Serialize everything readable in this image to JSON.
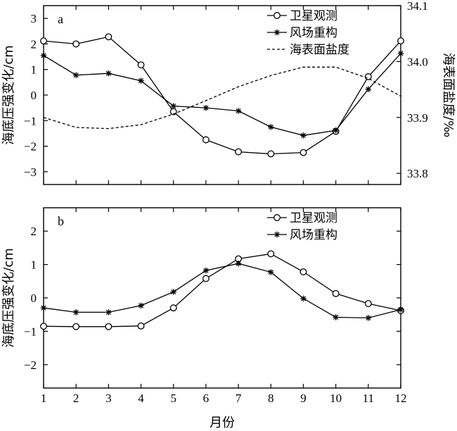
{
  "chart_data": [
    {
      "type": "line",
      "panel_label": "a",
      "x": [
        1,
        2,
        3,
        4,
        5,
        6,
        7,
        8,
        9,
        10,
        11,
        12
      ],
      "ylabel": "海底压强变化/cm",
      "ylim": [
        -3.5,
        3.5
      ],
      "yticks": [
        -3,
        -2,
        -1,
        0,
        1,
        2,
        3
      ],
      "y2label": "海表面盐度/‰",
      "y2lim": [
        33.78,
        34.1
      ],
      "y2ticks": [
        "33.8",
        "33.9",
        "34.0",
        "34.1"
      ],
      "y2tick_values": [
        33.8,
        33.9,
        34.0,
        34.1
      ],
      "legend_position": "top-right",
      "series": [
        {
          "name": "卫星观测",
          "marker": "circle",
          "axis": "left",
          "values": [
            2.12,
            2.0,
            2.28,
            1.18,
            -0.65,
            -1.75,
            -2.22,
            -2.3,
            -2.25,
            -1.42,
            0.72,
            2.12
          ]
        },
        {
          "name": "风场重构",
          "marker": "star",
          "axis": "left",
          "values": [
            1.55,
            0.78,
            0.85,
            0.56,
            -0.43,
            -0.5,
            -0.62,
            -1.25,
            -1.58,
            -1.38,
            0.23,
            1.63
          ]
        },
        {
          "name": "海表面盐度",
          "marker": "none",
          "dash": true,
          "axis": "right",
          "values": [
            33.9,
            33.882,
            33.88,
            33.887,
            33.906,
            33.93,
            33.955,
            33.975,
            33.99,
            33.99,
            33.97,
            33.938
          ]
        }
      ]
    },
    {
      "type": "line",
      "panel_label": "b",
      "x": [
        1,
        2,
        3,
        4,
        5,
        6,
        7,
        8,
        9,
        10,
        11,
        12
      ],
      "xlabel": "月份",
      "xticks": [
        "1",
        "2",
        "3",
        "4",
        "5",
        "6",
        "7",
        "8",
        "9",
        "10",
        "11",
        "12"
      ],
      "ylabel": "海底压强变化/cm",
      "ylim": [
        -2.7,
        2.7
      ],
      "yticks": [
        -2,
        -1,
        0,
        1,
        2
      ],
      "legend_position": "top-right",
      "series": [
        {
          "name": "卫星观测",
          "marker": "circle",
          "values": [
            -0.85,
            -0.86,
            -0.86,
            -0.84,
            -0.3,
            0.58,
            1.17,
            1.32,
            0.78,
            0.13,
            -0.17,
            -0.38
          ]
        },
        {
          "name": "风场重构",
          "marker": "star",
          "values": [
            -0.3,
            -0.43,
            -0.43,
            -0.23,
            0.18,
            0.82,
            1.03,
            0.77,
            -0.02,
            -0.58,
            -0.6,
            -0.35
          ]
        }
      ]
    }
  ]
}
